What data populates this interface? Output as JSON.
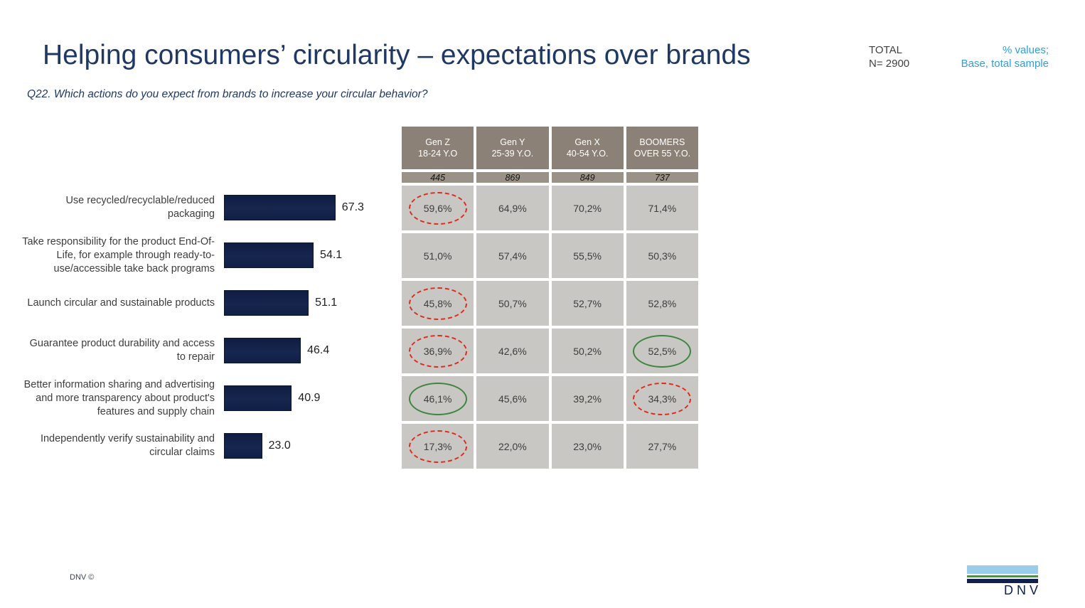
{
  "header": {
    "title": "Helping consumers’ circularity – expectations over brands",
    "question": "Q22. Which actions do you expect from brands to increase your circular behavior?",
    "total_label": "TOTAL",
    "total_n": "N= 2900",
    "values_note": "% values;",
    "base_note": "Base, total sample"
  },
  "footer": {
    "copyright": "DNV ©",
    "logo_text": "DNV"
  },
  "colors": {
    "title_navy": "#1F3864",
    "bar_navy": "#13234A",
    "table_header_bg": "#8B8177",
    "table_base_bg": "#9A9187",
    "table_cell_bg": "#C9C7C3",
    "note_blue": "#2F9FD6",
    "annotation_red": "#DD2B1C",
    "annotation_green": "#3E8540",
    "logo_light_blue": "#99CDE9",
    "logo_green": "#3F9C35",
    "logo_navy": "#0F204B"
  },
  "chart_data": [
    {
      "type": "bar",
      "orientation": "horizontal",
      "title": "Helping consumers’ circularity – expectations over brands",
      "categories": [
        "Use recycled/recyclable/reduced packaging",
        "Take responsibility for the product End-Of-Life, for example through ready-to-use/accessible take back programs",
        "Launch circular and sustainable products",
        "Guarantee product durability and access to repair",
        "Better information sharing and advertising and more transparency about product's features and supply chain",
        "Independently verify sustainability and circular claims"
      ],
      "values": [
        67.3,
        54.1,
        51.1,
        46.4,
        40.9,
        23.0
      ],
      "value_labels": [
        "67.3",
        "54.1",
        "51.1",
        "46.4",
        "40.9",
        "23.0"
      ],
      "xlim": [
        0,
        100
      ],
      "grid": false,
      "legend": false,
      "base": "Total sample, N= 2900"
    },
    {
      "type": "table",
      "columns": [
        {
          "gen": "Gen Z",
          "age": "18-24 Y.O"
        },
        {
          "gen": "Gen Y",
          "age": "25-39 Y.O."
        },
        {
          "gen": "Gen X",
          "age": "40-54 Y.O."
        },
        {
          "gen": "BOOMERS",
          "age": "OVER 55 Y.O."
        }
      ],
      "base_n": [
        "445",
        "869",
        "849",
        "737"
      ],
      "rows": [
        {
          "label": "Use recycled/recyclable/reduced packaging",
          "values": [
            "59,6%",
            "64,9%",
            "70,2%",
            "71,4%"
          ],
          "annotations": [
            "red-dashed",
            null,
            null,
            null
          ]
        },
        {
          "label": "Take responsibility for the product End-Of-Life, for example through ready-to-use/accessible take back programs",
          "values": [
            "51,0%",
            "57,4%",
            "55,5%",
            "50,3%"
          ],
          "annotations": [
            null,
            null,
            null,
            null
          ]
        },
        {
          "label": "Launch circular and sustainable products",
          "values": [
            "45,8%",
            "50,7%",
            "52,7%",
            "52,8%"
          ],
          "annotations": [
            "red-dashed",
            null,
            null,
            null
          ]
        },
        {
          "label": "Guarantee product durability and access to repair",
          "values": [
            "36,9%",
            "42,6%",
            "50,2%",
            "52,5%"
          ],
          "annotations": [
            "red-dashed",
            null,
            null,
            "green-solid"
          ]
        },
        {
          "label": "Better information sharing and advertising and more transparency about product's features and supply chain",
          "values": [
            "46,1%",
            "45,6%",
            "39,2%",
            "34,3%"
          ],
          "annotations": [
            "green-solid",
            null,
            null,
            "red-dashed"
          ]
        },
        {
          "label": "Independently verify sustainability and circular claims",
          "values": [
            "17,3%",
            "22,0%",
            "23,0%",
            "27,7%"
          ],
          "annotations": [
            "red-dashed",
            null,
            null,
            null
          ]
        }
      ]
    }
  ]
}
